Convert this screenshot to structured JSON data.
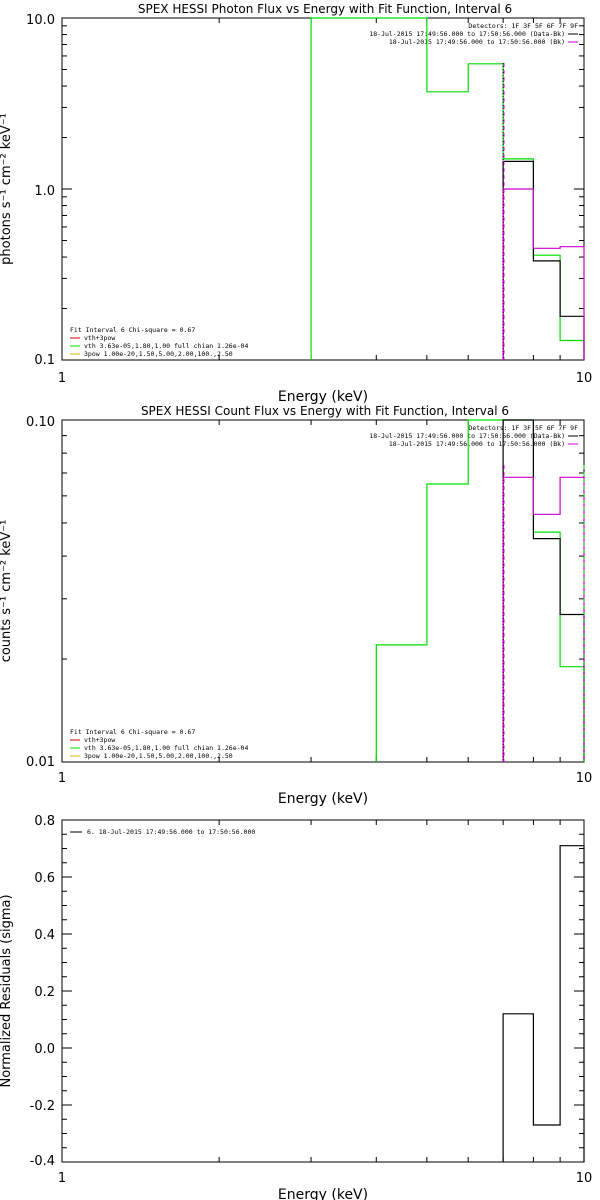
{
  "chart_data": [
    {
      "type": "line",
      "title": "SPEX HESSI Photon Flux vs Energy with Fit Function, Interval 6",
      "xlabel": "Energy (keV)",
      "ylabel": "photons s⁻¹ cm⁻² keV⁻¹",
      "xscale": "log",
      "yscale": "log",
      "xlim": [
        1,
        10
      ],
      "ylim": [
        0.1,
        10
      ],
      "x_ticks": [
        "1",
        "10"
      ],
      "y_ticks": [
        "0.1",
        "1.0",
        "10.0"
      ],
      "header": [
        "Detectors: 1F 3F 5F 6F 7F 9F",
        "18-Jul-2015 17:49:56.000 to 17:50:56.000 (Data-Bk)",
        "18-Jul-2015 17:49:56.000 to 17:50:56.000 (Bk)"
      ],
      "fit_info": [
        "Fit Interval  6    Chi-square = 0.67",
        "vth+3pow",
        "vth 3.63e-05,1.80,1.00  full chian 1.26e-04",
        "3pow 1.00e-20,1.50,5.00,2.00,100.,2.50"
      ],
      "series": [
        {
          "role": "fit",
          "color": "#00dd00",
          "steps": [
            [
              3.0,
              3.0,
              0.1
            ],
            [
              3.0,
              5.0,
              10.0
            ],
            [
              5.0,
              6.0,
              3.7
            ],
            [
              6.0,
              7.0,
              5.4
            ],
            [
              7.0,
              8.0,
              1.5
            ],
            [
              8.0,
              9.0,
              0.41
            ],
            [
              9.0,
              10.0,
              0.13
            ]
          ]
        },
        {
          "role": "data-bk",
          "color": "#000000",
          "steps": [
            [
              7.0,
              8.0,
              1.45
            ],
            [
              8.0,
              9.0,
              0.38
            ],
            [
              9.0,
              10.0,
              0.18
            ]
          ]
        },
        {
          "role": "bk",
          "color": "#cc00cc",
          "steps": [
            [
              7.0,
              8.0,
              1.0
            ],
            [
              8.0,
              9.0,
              0.45
            ],
            [
              9.0,
              10.0,
              0.46
            ]
          ]
        }
      ],
      "markers": [
        {
          "x": 7.0,
          "style": "dotted",
          "color": "#000000"
        },
        {
          "x": 7.0,
          "style": "dashed",
          "color": "#cc00cc"
        }
      ]
    },
    {
      "type": "line",
      "title": "SPEX HESSI Count Flux vs Energy with Fit Function, Interval 6",
      "xlabel": "Energy (keV)",
      "ylabel": "counts s⁻¹ cm⁻² keV⁻¹",
      "xscale": "log",
      "yscale": "log",
      "xlim": [
        1,
        10
      ],
      "ylim": [
        0.01,
        0.1
      ],
      "x_ticks": [
        "1",
        "10"
      ],
      "y_ticks": [
        "0.01",
        "0.10"
      ],
      "header": [
        "Detectors: 1F 3F 5F 6F 7F 9F",
        "18-Jul-2015 17:49:56.000 to 17:50:56.000 (Data-Bk)",
        "18-Jul-2015 17:49:56.000 to 17:50:56.000 (Bk)"
      ],
      "fit_info": [
        "Fit Interval  6    Chi-square = 0.67",
        "vth+3pow",
        "vth 3.63e-05,1.80,1.00  full chian 1.26e-04",
        "3pow 1.00e-20,1.50,5.00,2.00,100.,2.50"
      ],
      "series": [
        {
          "role": "fit",
          "color": "#00dd00",
          "steps": [
            [
              4.0,
              4.0,
              0.01
            ],
            [
              4.0,
              5.0,
              0.022
            ],
            [
              5.0,
              6.0,
              0.065
            ],
            [
              6.0,
              7.0,
              0.1
            ],
            [
              7.0,
              8.0,
              0.1
            ],
            [
              8.0,
              9.0,
              0.047
            ],
            [
              9.0,
              10.0,
              0.019
            ]
          ]
        },
        {
          "role": "data-bk",
          "color": "#000000",
          "steps": [
            [
              7.0,
              8.0,
              0.1
            ],
            [
              8.0,
              9.0,
              0.045
            ],
            [
              9.0,
              10.0,
              0.027
            ]
          ]
        },
        {
          "role": "bk",
          "color": "#cc00cc",
          "steps": [
            [
              7.0,
              8.0,
              0.068
            ],
            [
              8.0,
              9.0,
              0.053
            ],
            [
              9.0,
              10.0,
              0.068
            ]
          ]
        }
      ],
      "markers": [
        {
          "x": 7.0,
          "style": "dotted",
          "color": "#000000"
        },
        {
          "x": 7.0,
          "style": "dashed",
          "color": "#cc00cc"
        },
        {
          "x": 10.0,
          "style": "dashed",
          "color": "#00dd00"
        }
      ]
    },
    {
      "type": "line",
      "title": "",
      "xlabel": "Energy (keV)",
      "ylabel": "Normalized Residuals (sigma)",
      "xscale": "log",
      "yscale": "linear",
      "xlim": [
        1,
        10
      ],
      "ylim": [
        -0.4,
        0.8
      ],
      "x_ticks": [
        "1",
        "10"
      ],
      "y_ticks": [
        "-0.4",
        "-0.2",
        "0.0",
        "0.2",
        "0.4",
        "0.6",
        "0.8"
      ],
      "legend": "6. 18-Jul-2015 17:49:56.000 to 17:50:56.000",
      "series": [
        {
          "role": "residuals",
          "color": "#000000",
          "steps": [
            [
              7.0,
              8.0,
              0.12
            ],
            [
              8.0,
              9.0,
              -0.27
            ],
            [
              9.0,
              10.0,
              0.71
            ]
          ]
        }
      ]
    }
  ]
}
